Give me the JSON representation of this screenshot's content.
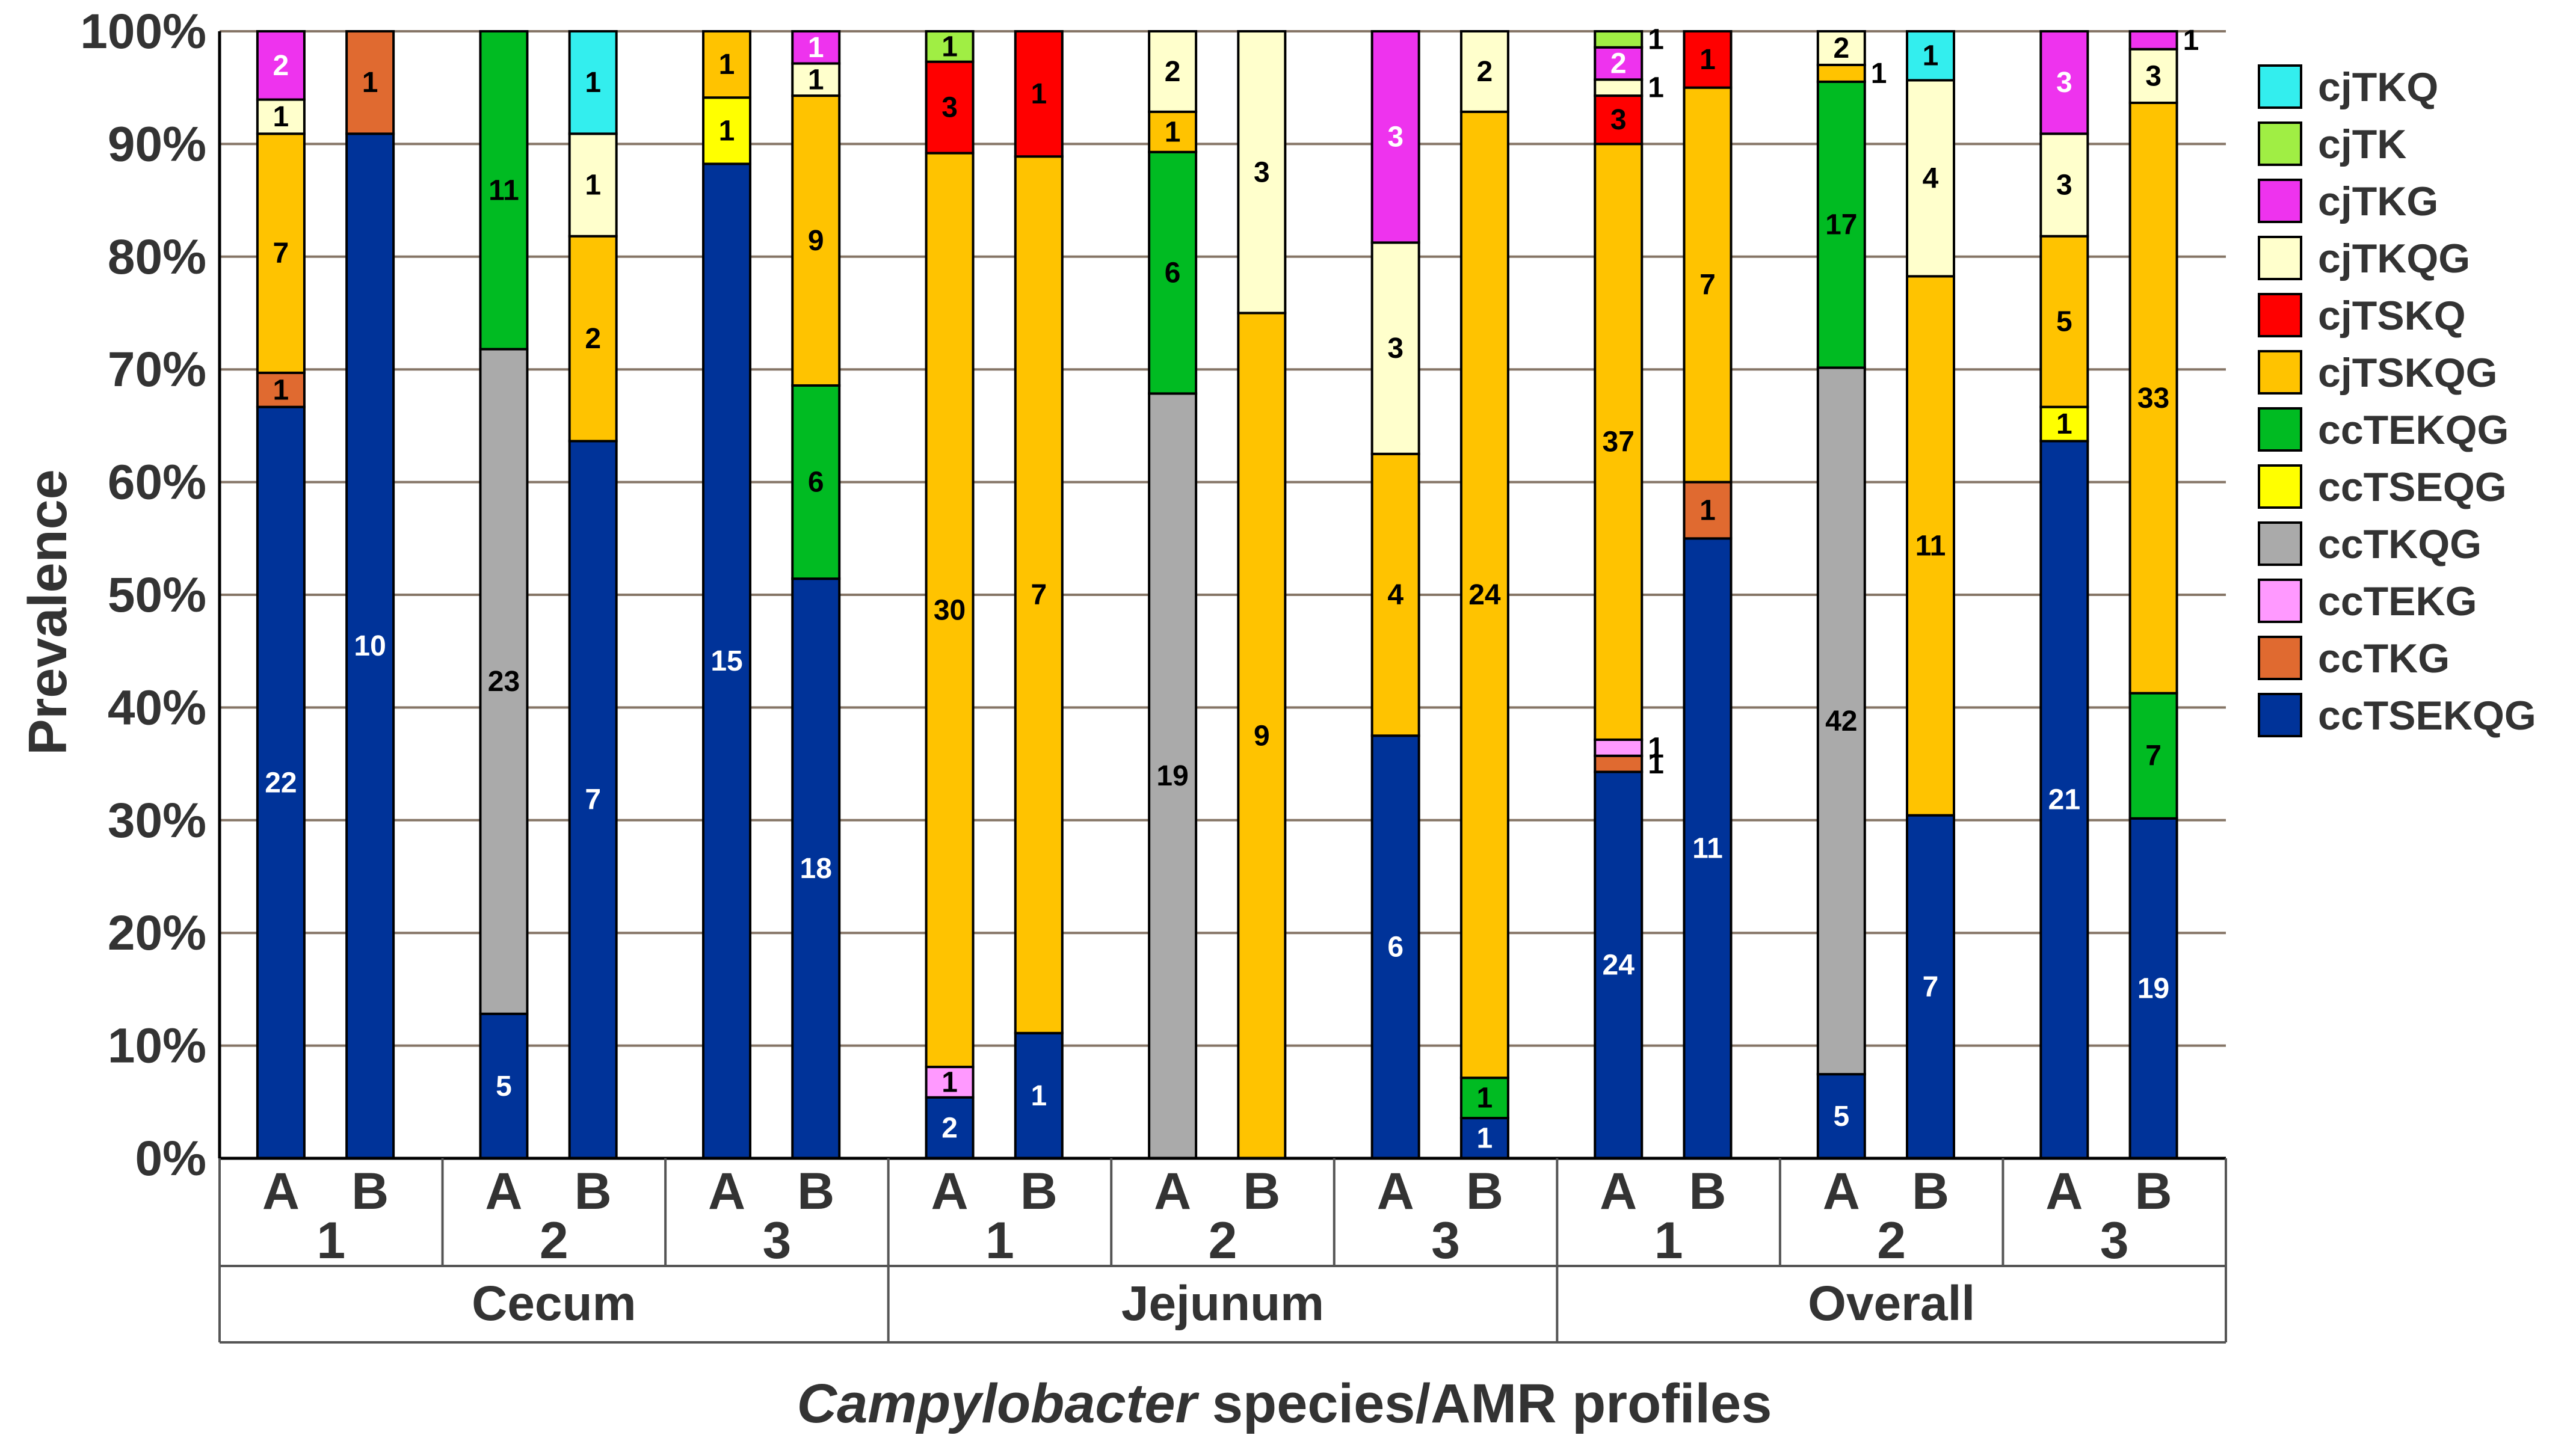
{
  "chart_data": {
    "type": "bar",
    "stacked": true,
    "normalized": true,
    "title": "",
    "ylabel": "Prevalence",
    "xlabel_italic": "Campylobacter",
    "xlabel_rest": " species/AMR profiles",
    "ylim": [
      0,
      100
    ],
    "yticks": [
      0,
      10,
      20,
      30,
      40,
      50,
      60,
      70,
      80,
      90,
      100
    ],
    "ytick_labels": [
      "0%",
      "10%",
      "20%",
      "30%",
      "40%",
      "50%",
      "60%",
      "70%",
      "80%",
      "90%",
      "100%"
    ],
    "legend_position": "right",
    "profiles": [
      {
        "name": "ccTSEKQG",
        "color": "#003399",
        "text_color": "#ffffff"
      },
      {
        "name": "ccTKG",
        "color": "#e06a30",
        "text_color": "#000000"
      },
      {
        "name": "ccTEKG",
        "color": "#ff99ff",
        "text_color": "#000000"
      },
      {
        "name": "ccTKQG",
        "color": "#aaaaaa",
        "text_color": "#000000"
      },
      {
        "name": "ccTSEQG",
        "color": "#ffff00",
        "text_color": "#000000"
      },
      {
        "name": "ccTEKQG",
        "color": "#00bb22",
        "text_color": "#000000"
      },
      {
        "name": "cjTSKQG",
        "color": "#ffc300",
        "text_color": "#000000"
      },
      {
        "name": "cjTSKQ",
        "color": "#ff0000",
        "text_color": "#000000"
      },
      {
        "name": "cjTKQG",
        "color": "#ffffcc",
        "text_color": "#000000"
      },
      {
        "name": "cjTKG",
        "color": "#ee33ee",
        "text_color": "#ffffff"
      },
      {
        "name": "cjTK",
        "color": "#a0ee44",
        "text_color": "#000000"
      },
      {
        "name": "cjTKQ",
        "color": "#33eeee",
        "text_color": "#000000"
      }
    ],
    "legend_order": [
      "cjTKQ",
      "cjTK",
      "cjTKG",
      "cjTKQG",
      "cjTSKQ",
      "cjTSKQG",
      "ccTEKQG",
      "ccTSEQG",
      "ccTKQG",
      "ccTEKG",
      "ccTKG",
      "ccTSEKQG"
    ],
    "sites": [
      "Cecum",
      "Jejunum",
      "Overall"
    ],
    "groups": [
      "1",
      "2",
      "3"
    ],
    "bars": [
      {
        "site": "Cecum",
        "group": "1",
        "label": "A",
        "counts": {
          "ccTSEKQG": 22,
          "ccTKG": 1,
          "cjTSKQG": 7,
          "cjTKQG": 1,
          "cjTKG": 2
        }
      },
      {
        "site": "Cecum",
        "group": "1",
        "label": "B",
        "counts": {
          "ccTSEKQG": 10,
          "ccTKG": 1
        }
      },
      {
        "site": "Cecum",
        "group": "2",
        "label": "A",
        "counts": {
          "ccTSEKQG": 5,
          "ccTKQG": 23,
          "ccTEKQG": 11
        }
      },
      {
        "site": "Cecum",
        "group": "2",
        "label": "B",
        "counts": {
          "ccTSEKQG": 7,
          "cjTSKQG": 2,
          "cjTKQG": 1,
          "cjTKQ": 1
        }
      },
      {
        "site": "Cecum",
        "group": "3",
        "label": "A",
        "counts": {
          "ccTSEKQG": 15,
          "ccTSEQG": 1,
          "cjTSKQG": 1
        }
      },
      {
        "site": "Cecum",
        "group": "3",
        "label": "B",
        "counts": {
          "ccTSEKQG": 18,
          "ccTEKQG": 6,
          "cjTSKQG": 9,
          "cjTKQG": 1,
          "cjTKG": 1
        }
      },
      {
        "site": "Jejunum",
        "group": "1",
        "label": "A",
        "counts": {
          "ccTSEKQG": 2,
          "ccTEKG": 1,
          "cjTSKQG": 30,
          "cjTSKQ": 3,
          "cjTK": 1
        }
      },
      {
        "site": "Jejunum",
        "group": "1",
        "label": "B",
        "counts": {
          "ccTSEKQG": 1,
          "cjTSKQG": 7,
          "cjTSKQ": 1
        }
      },
      {
        "site": "Jejunum",
        "group": "2",
        "label": "A",
        "counts": {
          "ccTKQG": 19,
          "ccTEKQG": 6,
          "cjTSKQG": 1,
          "cjTKQG": 2
        }
      },
      {
        "site": "Jejunum",
        "group": "2",
        "label": "B",
        "counts": {
          "cjTSKQG": 9,
          "cjTKQG": 3
        }
      },
      {
        "site": "Jejunum",
        "group": "3",
        "label": "A",
        "counts": {
          "ccTSEKQG": 6,
          "cjTSKQG": 4,
          "cjTKQG": 3,
          "cjTKG": 3
        }
      },
      {
        "site": "Jejunum",
        "group": "3",
        "label": "B",
        "counts": {
          "ccTSEKQG": 1,
          "ccTEKQG": 1,
          "cjTSKQG": 24,
          "cjTKQG": 2
        }
      },
      {
        "site": "Overall",
        "group": "1",
        "label": "A",
        "counts": {
          "ccTSEKQG": 24,
          "ccTKG": 1,
          "ccTEKG": 1,
          "cjTSKQG": 37,
          "cjTSKQ": 3,
          "cjTKQG": 1,
          "cjTKG": 2,
          "cjTK": 1
        }
      },
      {
        "site": "Overall",
        "group": "1",
        "label": "B",
        "counts": {
          "ccTSEKQG": 11,
          "ccTKG": 1,
          "cjTSKQG": 7,
          "cjTSKQ": 1
        }
      },
      {
        "site": "Overall",
        "group": "2",
        "label": "A",
        "counts": {
          "ccTSEKQG": 5,
          "ccTKQG": 42,
          "ccTEKQG": 17,
          "cjTSKQG": 1,
          "cjTKQG": 2
        }
      },
      {
        "site": "Overall",
        "group": "2",
        "label": "B",
        "counts": {
          "ccTSEKQG": 7,
          "cjTSKQG": 11,
          "cjTKQG": 4,
          "cjTKQ": 1
        }
      },
      {
        "site": "Overall",
        "group": "3",
        "label": "A",
        "counts": {
          "ccTSEKQG": 21,
          "ccTSEQG": 1,
          "cjTSKQG": 5,
          "cjTKQG": 3,
          "cjTKG": 3
        }
      },
      {
        "site": "Overall",
        "group": "3",
        "label": "B",
        "counts": {
          "ccTSEKQG": 19,
          "ccTEKQG": 7,
          "cjTSKQG": 33,
          "cjTKQG": 3,
          "cjTKG": 1
        }
      }
    ]
  }
}
